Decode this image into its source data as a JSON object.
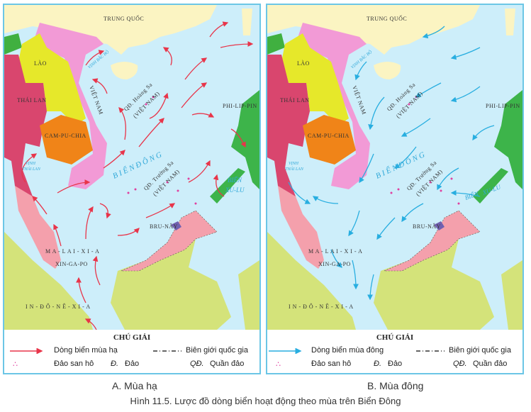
{
  "maps": {
    "labels": {
      "china": "TRUNG QUỐC",
      "laos": "LÀO",
      "thailand": "THÁI LAN",
      "vietnam": "VIỆT NAM",
      "cambodia": "CAM-PU-CHIA",
      "philippines": "PHI-LIP-PIN",
      "brunei": "BRU-NÂY",
      "malaysia": "M A - L A I - X I - A",
      "singapore": "XIN-GA-PO",
      "indonesia": "I N - Đ Ô - N Ê - X I - A",
      "gulf_tonkin": "VỊNH BẮC BỘ",
      "gulf_thailand_1": "VỊNH",
      "gulf_thailand_2": "THÁI LAN",
      "east_sea": "B I Ể N  Đ Ô N G",
      "sulu_1": "BIỂN",
      "sulu_2": "XU-LU",
      "paracel_1": "QĐ. Hoàng Sa",
      "paracel_2": "(VIỆT NAM)",
      "spratly_1": "QĐ. Trường Sa",
      "spratly_2": "(VIỆT NAM)"
    }
  },
  "panels": [
    {
      "legend_title": "CHÚ GIẢI",
      "current_label": "Dòng biển mùa hạ",
      "border_label": "Biên giới quốc gia",
      "coral_label": "Đảo san hô",
      "island_abbr": "Đ.",
      "island_label": "Đảo",
      "archipelago_abbr": "QĐ.",
      "archipelago_label": "Quần đảo",
      "caption": "A. Mùa hạ",
      "arrow_color": "#e8354a"
    },
    {
      "legend_title": "CHÚ GIẢI",
      "current_label": "Dòng biển mùa đông",
      "border_label": "Biên giới quốc gia",
      "coral_label": "Đảo san hô",
      "island_abbr": "Đ.",
      "island_label": "Đảo",
      "archipelago_abbr": "QĐ.",
      "archipelago_label": "Quần đảo",
      "caption": "B. Mùa đông",
      "arrow_color": "#28aee0"
    }
  ],
  "figure_caption": "Hình 11.5. Lược đồ dòng biển hoạt động theo mùa trên Biển Đông",
  "colors": {
    "sea": "#cdeefa",
    "china": "#fbf4c2",
    "laos": "#e6e82a",
    "vietnam": "#f29ad6",
    "thailand": "#d9466e",
    "cambodia": "#f08418",
    "malaysia": "#f4a0ac",
    "indonesia": "#d4e37a",
    "philippines": "#3db44a"
  }
}
